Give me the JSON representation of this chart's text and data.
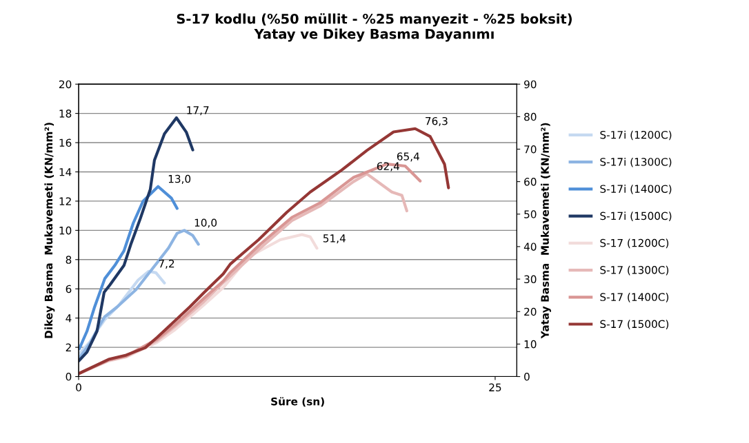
{
  "chart_data": {
    "type": "line",
    "title": "S-17 kodlu (%50 müllit - %25 manyezit - %25 boksit)\nYatay ve Dikey Basma Dayanımı",
    "xlabel": "Süre (sn)",
    "ylabel": "Dikey Basma  Mukavemeti (KN/mm²)",
    "y2label": "Yatay Basma  Mukavemeti (KN/mm²)",
    "xlim": [
      0,
      26.3
    ],
    "xticks": [
      0,
      25
    ],
    "ylim": [
      0,
      20
    ],
    "yticks": [
      0,
      2,
      4,
      6,
      8,
      10,
      12,
      14,
      16,
      18,
      20
    ],
    "y2lim": [
      0,
      90
    ],
    "y2ticks": [
      0,
      10,
      20,
      30,
      40,
      50,
      60,
      70,
      80,
      90
    ],
    "grid": "y",
    "annotations": [
      {
        "text": "51,4",
        "x": 14.3,
        "y": 8.8
      }
    ],
    "legend": "right",
    "marker": "none",
    "line_style": "solid",
    "series": [
      {
        "name": "S-17i (1200C)",
        "color": "#c5d9f1",
        "x": [
          0,
          0.7,
          1.2,
          1.57,
          2.43,
          3.57,
          4.2,
          4.64,
          5.15
        ],
        "values": [
          1.5,
          2.4,
          3.3,
          3.9,
          4.9,
          6.6,
          7.2,
          7.1,
          6.4
        ],
        "value_labels": [
          null,
          null,
          null,
          null,
          null,
          null,
          "7,2",
          null,
          null
        ]
      },
      {
        "name": "S-17i (1300C)",
        "color": "#8db4e2",
        "x": [
          0,
          0.7,
          1.2,
          1.57,
          2.3,
          3.45,
          4.72,
          5.4,
          5.91,
          6.34,
          6.85,
          7.19
        ],
        "values": [
          1.2,
          2.3,
          3.4,
          4.1,
          4.75,
          5.95,
          7.8,
          8.8,
          9.8,
          10.0,
          9.65,
          9.05
        ],
        "value_labels": [
          null,
          null,
          null,
          null,
          null,
          null,
          null,
          null,
          null,
          "10,0",
          null,
          null
        ]
      },
      {
        "name": "S-17i (1400C)",
        "color": "#4f8fd8",
        "x": [
          0.04,
          0.5,
          0.94,
          1.57,
          2.17,
          2.72,
          3.28,
          3.87,
          4.77,
          5.57,
          5.91
        ],
        "values": [
          1.9,
          3.1,
          4.7,
          6.7,
          7.6,
          8.6,
          10.5,
          12.0,
          13.0,
          12.2,
          11.5
        ],
        "value_labels": [
          null,
          null,
          null,
          null,
          null,
          null,
          null,
          null,
          "13,0",
          null,
          null
        ]
      },
      {
        "name": "S-17i (1500C)",
        "color": "#1f3864",
        "x": [
          0,
          0.5,
          1.1,
          1.53,
          1.87,
          2.72,
          3.15,
          3.7,
          4.3,
          4.55,
          5.15,
          5.87,
          6.47,
          6.85
        ],
        "values": [
          1.06,
          1.67,
          3.1,
          5.76,
          6.26,
          7.6,
          9.1,
          10.8,
          12.8,
          14.8,
          16.6,
          17.7,
          16.7,
          15.5
        ],
        "value_labels": [
          null,
          null,
          null,
          null,
          null,
          null,
          null,
          null,
          null,
          null,
          null,
          "17,7",
          null,
          null
        ]
      },
      {
        "name": "S-17 (1200C)",
        "color": "#f2dcdb",
        "axis": "y2",
        "x": [
          0,
          1.8,
          2.85,
          4.7,
          5.8,
          7.5,
          8.7,
          10.2,
          12.1,
          13.4,
          13.9,
          14.3
        ],
        "values": [
          0.9,
          4.8,
          6.0,
          10.5,
          14.5,
          22,
          27.5,
          36.8,
          42.1,
          43.7,
          43,
          39.5
        ]
      },
      {
        "name": "S-17 (1300C)",
        "color": "#e6b9b8",
        "axis": "y2",
        "x": [
          0,
          1.8,
          2.85,
          4.7,
          5.8,
          7.5,
          8.7,
          10.9,
          12.8,
          14.5,
          16.5,
          17.3,
          18.8,
          19.4,
          19.7
        ],
        "values": [
          0.9,
          5.0,
          6.2,
          11,
          15.5,
          23,
          29,
          39.5,
          48,
          52.5,
          60,
          62.4,
          56.8,
          55.8,
          51
        ],
        "value_labels": [
          null,
          null,
          null,
          null,
          null,
          null,
          null,
          null,
          null,
          null,
          null,
          "62,4",
          null,
          null,
          null
        ]
      },
      {
        "name": "S-17 (1400C)",
        "color": "#d99694",
        "axis": "y2",
        "x": [
          0,
          1.8,
          2.85,
          4.7,
          5.8,
          7.5,
          8.7,
          9.1,
          10.9,
          12.8,
          14.5,
          16.5,
          18.5,
          19.6,
          20.5
        ],
        "values": [
          0.9,
          5.1,
          6.3,
          11.5,
          16,
          24,
          29.5,
          32,
          40.7,
          49,
          53.5,
          61.3,
          65.4,
          64.8,
          60.2
        ],
        "value_labels": [
          null,
          null,
          null,
          null,
          null,
          null,
          null,
          null,
          null,
          null,
          null,
          null,
          "65,4",
          null,
          null
        ]
      },
      {
        "name": "S-17 (1500C)",
        "color": "#953735",
        "axis": "y2",
        "x": [
          0,
          1.8,
          2.85,
          4.0,
          4.72,
          5.83,
          6.68,
          7.53,
          8.68,
          9.1,
          10.8,
          12.5,
          13.9,
          15.8,
          17.3,
          18.9,
          20.2,
          21.1,
          21.96,
          22.2
        ],
        "values": [
          0.9,
          5.3,
          6.6,
          8.9,
          12.1,
          17.4,
          21.5,
          25.9,
          31.6,
          34.6,
          42.1,
          50.6,
          56.8,
          63.6,
          69.6,
          75.3,
          76.3,
          73.9,
          65.4,
          58.1
        ],
        "value_labels": [
          null,
          null,
          null,
          null,
          null,
          null,
          null,
          null,
          null,
          null,
          null,
          null,
          null,
          null,
          null,
          null,
          "76,3",
          null,
          null,
          null
        ]
      }
    ]
  }
}
